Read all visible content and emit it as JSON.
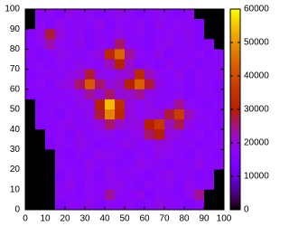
{
  "chart_data": {
    "type": "heatmap",
    "x": [
      2.5,
      7.5,
      12.5,
      17.5,
      22.5,
      27.5,
      32.5,
      37.5,
      42.5,
      47.5,
      52.5,
      57.5,
      62.5,
      67.5,
      72.5,
      77.5,
      82.5,
      87.5,
      92.5,
      97.5
    ],
    "y": [
      97.5,
      92.5,
      87.5,
      82.5,
      77.5,
      72.5,
      67.5,
      62.5,
      57.5,
      52.5,
      47.5,
      42.5,
      37.5,
      32.5,
      27.5,
      22.5,
      17.5,
      12.5,
      7.5,
      2.5
    ],
    "values": [
      [
        0,
        17000,
        18000,
        16000,
        19000,
        17000,
        18000,
        16000,
        17000,
        19000,
        18000,
        16000,
        17000,
        18000,
        17000,
        16000,
        18000,
        0,
        0,
        0
      ],
      [
        0,
        18000,
        16000,
        19000,
        17000,
        18000,
        17000,
        19000,
        16000,
        18000,
        17000,
        18000,
        16000,
        19000,
        17000,
        18000,
        17000,
        16000,
        0,
        0
      ],
      [
        17000,
        19000,
        28000,
        20000,
        17000,
        18000,
        16000,
        18000,
        17000,
        19000,
        17000,
        18000,
        16000,
        17000,
        18000,
        17000,
        19000,
        16000,
        0,
        0
      ],
      [
        16000,
        18000,
        23000,
        18000,
        17000,
        19000,
        16000,
        18000,
        17000,
        26000,
        18000,
        17000,
        16000,
        18000,
        19000,
        17000,
        18000,
        16000,
        17000,
        0
      ],
      [
        18000,
        16000,
        17000,
        19000,
        18000,
        17000,
        18000,
        20000,
        32000,
        44000,
        24000,
        18000,
        17000,
        19000,
        16000,
        18000,
        17000,
        18000,
        16000,
        17000
      ],
      [
        17000,
        18000,
        16000,
        18000,
        17000,
        19000,
        18000,
        17000,
        22000,
        30000,
        21000,
        17000,
        18000,
        16000,
        19000,
        17000,
        18000,
        16000,
        18000,
        17000
      ],
      [
        16000,
        17000,
        18000,
        17000,
        19000,
        20000,
        28000,
        19000,
        18000,
        20000,
        21000,
        32000,
        22000,
        18000,
        17000,
        19000,
        16000,
        18000,
        17000,
        18000
      ],
      [
        17000,
        18000,
        16000,
        19000,
        20000,
        26000,
        42000,
        26000,
        20000,
        22000,
        30000,
        43000,
        28000,
        19000,
        17000,
        18000,
        16000,
        18000,
        17000,
        16000
      ],
      [
        16000,
        17000,
        18000,
        17000,
        18000,
        19000,
        24000,
        20000,
        26000,
        20000,
        21000,
        24000,
        19000,
        18000,
        17000,
        18000,
        16000,
        17000,
        18000,
        16000
      ],
      [
        0,
        16000,
        17000,
        18000,
        17000,
        19000,
        18000,
        30000,
        54000,
        34000,
        20000,
        18000,
        19000,
        17000,
        18000,
        24000,
        18000,
        17000,
        16000,
        17000
      ],
      [
        0,
        17000,
        18000,
        16000,
        18000,
        17000,
        19000,
        28000,
        48000,
        32000,
        20000,
        18000,
        19000,
        20000,
        28000,
        37000,
        22000,
        18000,
        17000,
        16000
      ],
      [
        0,
        16000,
        17000,
        18000,
        19000,
        17000,
        18000,
        20000,
        26000,
        21000,
        19000,
        20000,
        30000,
        36000,
        22000,
        27000,
        19000,
        17000,
        18000,
        16000
      ],
      [
        0,
        0,
        17000,
        18000,
        16000,
        19000,
        17000,
        18000,
        19000,
        17000,
        18000,
        19000,
        26000,
        30000,
        20000,
        19000,
        17000,
        18000,
        16000,
        17000
      ],
      [
        0,
        0,
        16000,
        18000,
        17000,
        19000,
        18000,
        16000,
        17000,
        18000,
        19000,
        17000,
        18000,
        20000,
        19000,
        17000,
        18000,
        16000,
        17000,
        18000
      ],
      [
        0,
        0,
        0,
        17000,
        16000,
        18000,
        17000,
        19000,
        18000,
        17000,
        16000,
        18000,
        17000,
        19000,
        18000,
        17000,
        16000,
        18000,
        17000,
        16000
      ],
      [
        0,
        0,
        0,
        18000,
        17000,
        16000,
        19000,
        17000,
        18000,
        16000,
        17000,
        19000,
        18000,
        17000,
        16000,
        18000,
        17000,
        19000,
        17000,
        18000
      ],
      [
        0,
        0,
        0,
        16000,
        18000,
        17000,
        18000,
        16000,
        19000,
        17000,
        18000,
        17000,
        16000,
        18000,
        19000,
        17000,
        18000,
        16000,
        17000,
        0
      ],
      [
        0,
        0,
        0,
        17000,
        19000,
        16000,
        18000,
        17000,
        18000,
        19000,
        17000,
        16000,
        18000,
        17000,
        18000,
        16000,
        19000,
        17000,
        18000,
        0
      ],
      [
        0,
        0,
        0,
        18000,
        17000,
        16000,
        18000,
        17000,
        24000,
        18000,
        17000,
        19000,
        16000,
        18000,
        17000,
        16000,
        18000,
        24000,
        0,
        0
      ],
      [
        0,
        0,
        0,
        16000,
        18000,
        17000,
        19000,
        16000,
        18000,
        17000,
        18000,
        16000,
        17000,
        19000,
        18000,
        17000,
        16000,
        18000,
        0,
        0
      ]
    ],
    "xlim": [
      0,
      100
    ],
    "ylim": [
      0,
      100
    ],
    "xticks": [
      0,
      10,
      20,
      30,
      40,
      50,
      60,
      70,
      80,
      90,
      100
    ],
    "yticks": [
      0,
      10,
      20,
      30,
      40,
      50,
      60,
      70,
      80,
      90,
      100
    ],
    "zlim": [
      0,
      60000
    ],
    "zticks": [
      0,
      10000,
      20000,
      30000,
      40000,
      50000,
      60000
    ],
    "colormap": "gnuplot"
  }
}
